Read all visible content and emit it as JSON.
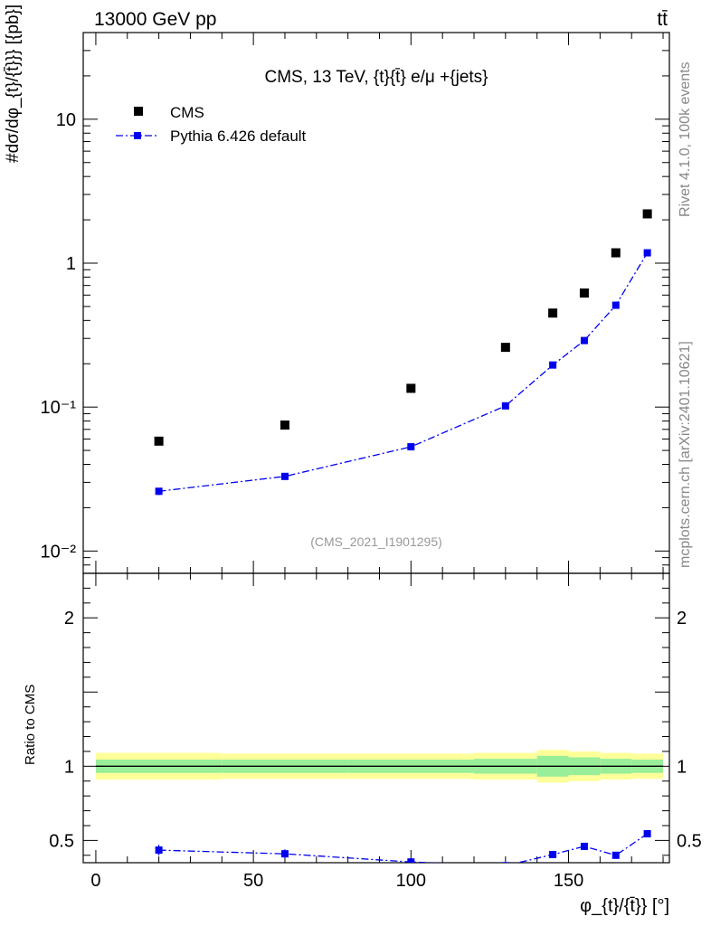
{
  "header": {
    "energy_label": "13000 GeV pp",
    "process_label": "tt̄",
    "side_label_top": "Rivet 4.1.0,  100k events",
    "side_label_bottom": "mcplots.cern.ch [arXiv:2401.10621]"
  },
  "chart_data": [
    {
      "type": "scatter",
      "title": "CMS, 13 TeV, {t}{t̄} e/μ +{jets}",
      "watermark": "(CMS_2021_I1901295)",
      "ylabel": "#dσ/dφ_{t}/{t̄}}} [{pb}]",
      "yscale": "log",
      "ylim": [
        0.007,
        40
      ],
      "ytick_labels": [
        "10⁻²",
        "10⁻¹",
        "1",
        "10"
      ],
      "xlim": [
        -4,
        182
      ],
      "legend": {
        "placement": "top-left",
        "entries": [
          "CMS",
          "Pythia 6.426 default"
        ]
      },
      "series": [
        {
          "name": "CMS",
          "color": "#000000",
          "marker": "square",
          "x": [
            20,
            60,
            100,
            130,
            145,
            155,
            165,
            175
          ],
          "y": [
            0.058,
            0.075,
            0.135,
            0.26,
            0.45,
            0.62,
            1.18,
            2.2
          ]
        },
        {
          "name": "Pythia 6.426 default",
          "color": "#0000ee",
          "marker": "square",
          "line": "dash-dot",
          "x": [
            20,
            60,
            100,
            130,
            145,
            155,
            165,
            175
          ],
          "y": [
            0.026,
            0.033,
            0.053,
            0.102,
            0.196,
            0.29,
            0.51,
            1.18
          ],
          "yerr": [
            0.0015,
            0.0015,
            0.002,
            0.003,
            0.006,
            0.008,
            0.015,
            0.03
          ]
        }
      ]
    },
    {
      "type": "line",
      "ylabel": "Ratio to CMS",
      "xlabel": "φ_{t}/{t̄}} [°]",
      "ylim": [
        0.35,
        2.3
      ],
      "xlim": [
        -4,
        182
      ],
      "x_tick_labels": [
        "0",
        "50",
        "100",
        "150"
      ],
      "y_tick_labels": [
        "0.5",
        "1",
        "2"
      ],
      "band_edges": [
        0,
        40,
        80,
        120,
        140,
        150,
        160,
        170,
        180
      ],
      "band_inner": [
        0.045,
        0.045,
        0.045,
        0.05,
        0.07,
        0.06,
        0.05,
        0.045
      ],
      "band_outer": [
        0.09,
        0.085,
        0.085,
        0.09,
        0.11,
        0.1,
        0.09,
        0.085
      ],
      "series": [
        {
          "name": "Pythia 6.426 default",
          "color": "#0000ee",
          "x": [
            20,
            60,
            100,
            130,
            145,
            155,
            165,
            175
          ],
          "y": [
            0.435,
            0.41,
            0.355,
            0.33,
            0.405,
            0.46,
            0.4,
            0.545
          ],
          "yerr": [
            0.035,
            0.03,
            0.025,
            0.02,
            0.025,
            0.025,
            0.015,
            0.01
          ]
        }
      ]
    }
  ]
}
